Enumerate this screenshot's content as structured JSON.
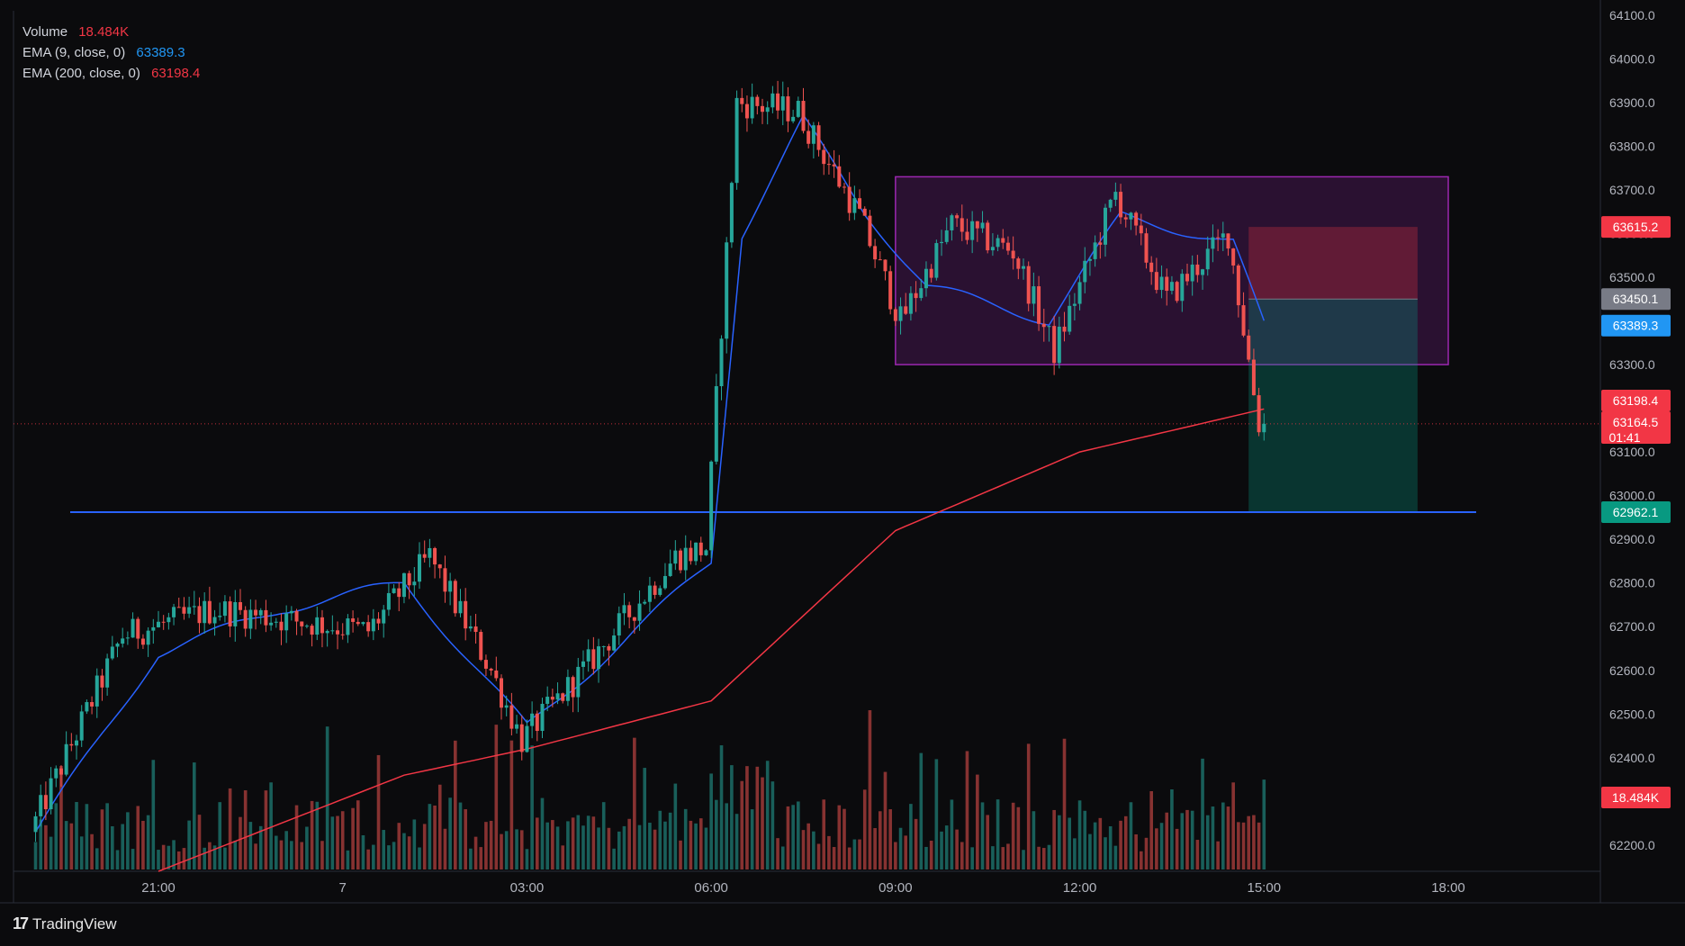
{
  "legend": {
    "volume_label": "Volume",
    "volume_value": "18.484K",
    "ema9_label": "EMA (9, close, 0)",
    "ema9_value": "63389.3",
    "ema200_label": "EMA (200, close, 0)",
    "ema200_value": "63198.4"
  },
  "colors": {
    "up": "#26a69a",
    "down": "#ef5350",
    "ema9": "#2962ff",
    "ema200": "#f23645",
    "range_box": "#9c27b0",
    "hline": "#2962ff",
    "background": "#0b0b0d"
  },
  "price_badges": [
    {
      "label": "63615.2",
      "color": "#f23645"
    },
    {
      "label": "63450.1",
      "color": "#787b86"
    },
    {
      "label": "63389.3",
      "color": "#2196f3"
    },
    {
      "label": "63198.4",
      "color": "#f23645"
    },
    {
      "label": "63164.5",
      "color": "#f23645",
      "sublabel": "01:41"
    },
    {
      "label": "62962.1",
      "color": "#089981"
    },
    {
      "label": "18.484K",
      "color": "#f23645"
    }
  ],
  "footer": {
    "brand": "TradingView"
  },
  "chart_data": {
    "type": "candlestick",
    "symbol_interval_minutes": 5,
    "y_axis_ticks": [
      "64100.0",
      "64000.0",
      "63900.0",
      "63800.0",
      "63700.0",
      "63600.0",
      "63500.0",
      "63400.0",
      "63300.0",
      "63200.0",
      "63100.0",
      "63000.0",
      "62900.0",
      "62800.0",
      "62700.0",
      "62600.0",
      "62500.0",
      "62400.0",
      "62300.0",
      "62200.0"
    ],
    "x_axis_ticks": [
      "21:00",
      "7",
      "03:00",
      "06:00",
      "09:00",
      "12:00",
      "15:00",
      "18:00"
    ],
    "ylim": [
      62140,
      64110
    ],
    "grid": false,
    "key_price_points": [
      {
        "time": "19:00",
        "price": 62230
      },
      {
        "time": "20:30",
        "price": 62680
      },
      {
        "time": "22:00",
        "price": 62740
      },
      {
        "time": "00:30",
        "price": 62690
      },
      {
        "time": "01:30",
        "price": 62860
      },
      {
        "time": "02:30",
        "price": 62600
      },
      {
        "time": "03:00",
        "price": 62440
      },
      {
        "time": "04:00",
        "price": 62600
      },
      {
        "time": "05:30",
        "price": 62860
      },
      {
        "time": "06:00",
        "price": 62880
      },
      {
        "time": "06:30",
        "price": 63900
      },
      {
        "time": "07:30",
        "price": 63880
      },
      {
        "time": "08:30",
        "price": 63640
      },
      {
        "time": "09:10",
        "price": 63400
      },
      {
        "time": "10:00",
        "price": 63620
      },
      {
        "time": "11:00",
        "price": 63560
      },
      {
        "time": "11:40",
        "price": 63330
      },
      {
        "time": "12:40",
        "price": 63690
      },
      {
        "time": "13:30",
        "price": 63450
      },
      {
        "time": "14:30",
        "price": 63600
      },
      {
        "time": "15:00",
        "price": 63164.5
      }
    ],
    "ema9_points": [
      {
        "time": "19:00",
        "price": 62230
      },
      {
        "time": "21:00",
        "price": 62640
      },
      {
        "time": "23:00",
        "price": 62740
      },
      {
        "time": "01:00",
        "price": 62800
      },
      {
        "time": "03:00",
        "price": 62470
      },
      {
        "time": "05:00",
        "price": 62720
      },
      {
        "time": "06:00",
        "price": 62850
      },
      {
        "time": "06:30",
        "price": 63600
      },
      {
        "time": "07:30",
        "price": 63860
      },
      {
        "time": "08:30",
        "price": 63650
      },
      {
        "time": "09:30",
        "price": 63480
      },
      {
        "time": "11:30",
        "price": 63400
      },
      {
        "time": "12:40",
        "price": 63640
      },
      {
        "time": "14:30",
        "price": 63580
      },
      {
        "time": "15:00",
        "price": 63389.3
      }
    ],
    "ema200_points": [
      {
        "time": "21:00",
        "price": 62140
      },
      {
        "time": "01:00",
        "price": 62360
      },
      {
        "time": "03:00",
        "price": 62420
      },
      {
        "time": "06:00",
        "price": 62530
      },
      {
        "time": "09:00",
        "price": 62920
      },
      {
        "time": "12:00",
        "price": 63100
      },
      {
        "time": "15:00",
        "price": 63198.4
      }
    ],
    "horizontal_line": {
      "price": 62962.1,
      "from": "19:45",
      "to": "18:10"
    },
    "range_box": {
      "from": "09:00",
      "to": "18:00",
      "top": 63730,
      "bottom": 63300
    },
    "short_position": {
      "from": "14:45",
      "to": "17:30",
      "stop": 63615.2,
      "entry": 63450.1,
      "target": 62962.1
    },
    "current_price": 63164.5,
    "volume_last": "18.484K"
  }
}
